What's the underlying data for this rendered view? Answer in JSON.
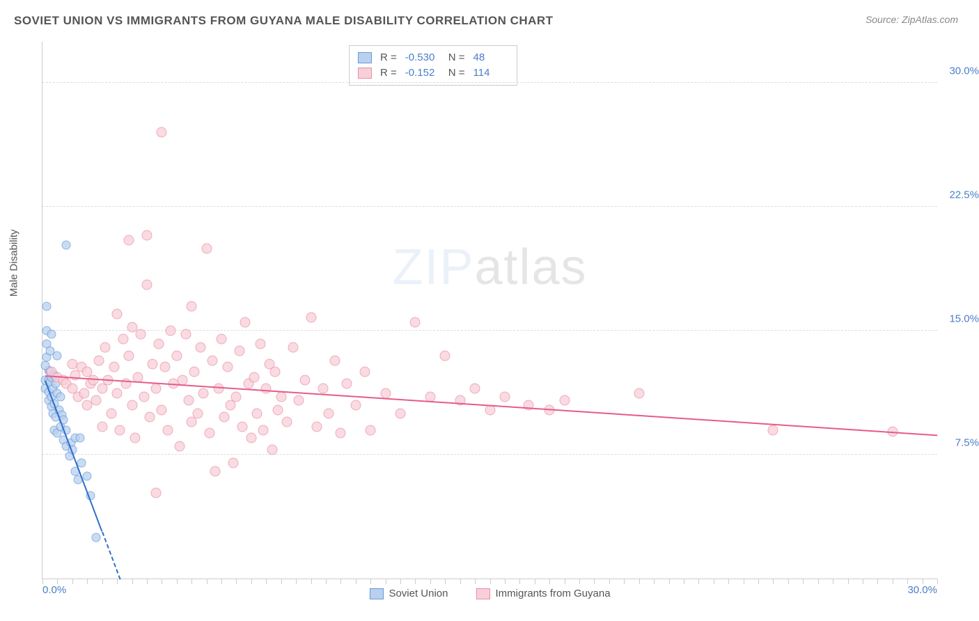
{
  "title": "SOVIET UNION VS IMMIGRANTS FROM GUYANA MALE DISABILITY CORRELATION CHART",
  "source_label": "Source:",
  "source_value": "ZipAtlas.com",
  "y_axis_label": "Male Disability",
  "watermark_a": "ZIP",
  "watermark_b": "atlas",
  "x_range": [
    0,
    30
  ],
  "y_range": [
    0,
    32.5
  ],
  "y_ticks": [
    {
      "v": 7.5,
      "label": "7.5%"
    },
    {
      "v": 15.0,
      "label": "15.0%"
    },
    {
      "v": 22.5,
      "label": "22.5%"
    },
    {
      "v": 30.0,
      "label": "30.0%"
    }
  ],
  "x_ticks": [
    0,
    2.5,
    5,
    7.5,
    10,
    12.5,
    15,
    17.5,
    20,
    22.5,
    25,
    27.5,
    30
  ],
  "x_tick_labels": [
    {
      "v": 0,
      "label": "0.0%"
    },
    {
      "v": 30,
      "label": "30.0%"
    }
  ],
  "x_minor_tick_step": 0.5,
  "series": [
    {
      "name": "Soviet Union",
      "fill": "#b9d1ef",
      "stroke": "#6799d8",
      "line_color": "#2e6fc7",
      "marker_size": 13,
      "R": "-0.530",
      "N": "48",
      "trend": {
        "x1": 0.1,
        "y1": 12.0,
        "x2": 2.6,
        "y2": 0.0,
        "dash_from_x": 2.0
      },
      "points": [
        [
          0.1,
          11.5
        ],
        [
          0.1,
          12.0
        ],
        [
          0.15,
          15.0
        ],
        [
          0.15,
          14.2
        ],
        [
          0.15,
          13.4
        ],
        [
          0.2,
          12.6
        ],
        [
          0.2,
          12.0
        ],
        [
          0.2,
          11.3
        ],
        [
          0.2,
          10.8
        ],
        [
          0.25,
          13.8
        ],
        [
          0.25,
          12.5
        ],
        [
          0.25,
          11.9
        ],
        [
          0.3,
          12.2
        ],
        [
          0.3,
          11.0
        ],
        [
          0.3,
          10.4
        ],
        [
          0.35,
          11.5
        ],
        [
          0.35,
          10.0
        ],
        [
          0.4,
          12.3
        ],
        [
          0.4,
          10.6
        ],
        [
          0.4,
          9.0
        ],
        [
          0.45,
          11.8
        ],
        [
          0.45,
          9.8
        ],
        [
          0.5,
          11.2
        ],
        [
          0.5,
          8.8
        ],
        [
          0.55,
          10.2
        ],
        [
          0.6,
          9.2
        ],
        [
          0.6,
          11.0
        ],
        [
          0.65,
          9.9
        ],
        [
          0.7,
          8.4
        ],
        [
          0.7,
          9.6
        ],
        [
          0.8,
          8.0
        ],
        [
          0.8,
          9.0
        ],
        [
          0.9,
          7.4
        ],
        [
          0.95,
          8.2
        ],
        [
          1.0,
          7.8
        ],
        [
          1.1,
          6.5
        ],
        [
          1.1,
          8.5
        ],
        [
          1.2,
          6.0
        ],
        [
          1.25,
          8.5
        ],
        [
          1.3,
          7.0
        ],
        [
          1.5,
          6.2
        ],
        [
          1.6,
          5.0
        ],
        [
          1.8,
          2.5
        ],
        [
          0.8,
          20.2
        ],
        [
          0.15,
          16.5
        ],
        [
          0.3,
          14.8
        ],
        [
          0.1,
          12.9
        ],
        [
          0.5,
          13.5
        ]
      ]
    },
    {
      "name": "Immigrants from Guyana",
      "fill": "#f8cfd8",
      "stroke": "#e88fa5",
      "line_color": "#e85a8a",
      "marker_size": 15,
      "R": "-0.152",
      "N": "114",
      "trend": {
        "x1": 0.1,
        "y1": 12.3,
        "x2": 30.0,
        "y2": 8.7
      },
      "points": [
        [
          0.3,
          12.5
        ],
        [
          0.5,
          12.2
        ],
        [
          0.7,
          12.0
        ],
        [
          0.8,
          11.8
        ],
        [
          1.0,
          13.0
        ],
        [
          1.0,
          11.5
        ],
        [
          1.1,
          12.3
        ],
        [
          1.2,
          11.0
        ],
        [
          1.3,
          12.8
        ],
        [
          1.4,
          11.2
        ],
        [
          1.5,
          12.5
        ],
        [
          1.5,
          10.5
        ],
        [
          1.6,
          11.8
        ],
        [
          1.7,
          12.0
        ],
        [
          1.8,
          10.8
        ],
        [
          1.9,
          13.2
        ],
        [
          2.0,
          11.5
        ],
        [
          2.0,
          9.2
        ],
        [
          2.1,
          14.0
        ],
        [
          2.2,
          12.0
        ],
        [
          2.3,
          10.0
        ],
        [
          2.4,
          12.8
        ],
        [
          2.5,
          11.2
        ],
        [
          2.5,
          16.0
        ],
        [
          2.6,
          9.0
        ],
        [
          2.7,
          14.5
        ],
        [
          2.8,
          11.8
        ],
        [
          2.9,
          13.5
        ],
        [
          3.0,
          10.5
        ],
        [
          3.0,
          15.2
        ],
        [
          3.1,
          8.5
        ],
        [
          3.2,
          12.2
        ],
        [
          3.3,
          14.8
        ],
        [
          3.4,
          11.0
        ],
        [
          3.5,
          20.8
        ],
        [
          3.5,
          17.8
        ],
        [
          3.6,
          9.8
        ],
        [
          3.7,
          13.0
        ],
        [
          3.8,
          11.5
        ],
        [
          3.9,
          14.2
        ],
        [
          4.0,
          10.2
        ],
        [
          4.0,
          27.0
        ],
        [
          4.1,
          12.8
        ],
        [
          4.2,
          9.0
        ],
        [
          4.3,
          15.0
        ],
        [
          4.4,
          11.8
        ],
        [
          4.5,
          13.5
        ],
        [
          4.6,
          8.0
        ],
        [
          4.7,
          12.0
        ],
        [
          4.8,
          14.8
        ],
        [
          4.9,
          10.8
        ],
        [
          5.0,
          16.5
        ],
        [
          5.0,
          9.5
        ],
        [
          5.1,
          12.5
        ],
        [
          5.2,
          10.0
        ],
        [
          5.3,
          14.0
        ],
        [
          5.4,
          11.2
        ],
        [
          5.5,
          20.0
        ],
        [
          5.6,
          8.8
        ],
        [
          5.7,
          13.2
        ],
        [
          5.8,
          6.5
        ],
        [
          5.9,
          11.5
        ],
        [
          6.0,
          14.5
        ],
        [
          6.1,
          9.8
        ],
        [
          6.2,
          12.8
        ],
        [
          6.3,
          10.5
        ],
        [
          6.4,
          7.0
        ],
        [
          6.5,
          11.0
        ],
        [
          6.6,
          13.8
        ],
        [
          6.7,
          9.2
        ],
        [
          6.8,
          15.5
        ],
        [
          6.9,
          11.8
        ],
        [
          7.0,
          8.5
        ],
        [
          7.1,
          12.2
        ],
        [
          7.2,
          10.0
        ],
        [
          7.3,
          14.2
        ],
        [
          7.4,
          9.0
        ],
        [
          7.5,
          11.5
        ],
        [
          7.6,
          13.0
        ],
        [
          7.7,
          7.8
        ],
        [
          7.8,
          12.5
        ],
        [
          7.9,
          10.2
        ],
        [
          8.0,
          11.0
        ],
        [
          8.2,
          9.5
        ],
        [
          8.4,
          14.0
        ],
        [
          8.6,
          10.8
        ],
        [
          8.8,
          12.0
        ],
        [
          9.0,
          15.8
        ],
        [
          9.2,
          9.2
        ],
        [
          9.4,
          11.5
        ],
        [
          9.6,
          10.0
        ],
        [
          9.8,
          13.2
        ],
        [
          10.0,
          8.8
        ],
        [
          10.2,
          11.8
        ],
        [
          10.5,
          10.5
        ],
        [
          10.8,
          12.5
        ],
        [
          11.0,
          9.0
        ],
        [
          11.5,
          11.2
        ],
        [
          12.0,
          10.0
        ],
        [
          12.5,
          15.5
        ],
        [
          13.0,
          11.0
        ],
        [
          13.5,
          13.5
        ],
        [
          14.0,
          10.8
        ],
        [
          14.5,
          11.5
        ],
        [
          15.0,
          10.2
        ],
        [
          15.5,
          11.0
        ],
        [
          16.3,
          10.5
        ],
        [
          17.0,
          10.2
        ],
        [
          17.5,
          10.8
        ],
        [
          20.0,
          11.2
        ],
        [
          24.5,
          9.0
        ],
        [
          28.5,
          8.9
        ],
        [
          3.8,
          5.2
        ],
        [
          2.9,
          20.5
        ]
      ]
    }
  ]
}
